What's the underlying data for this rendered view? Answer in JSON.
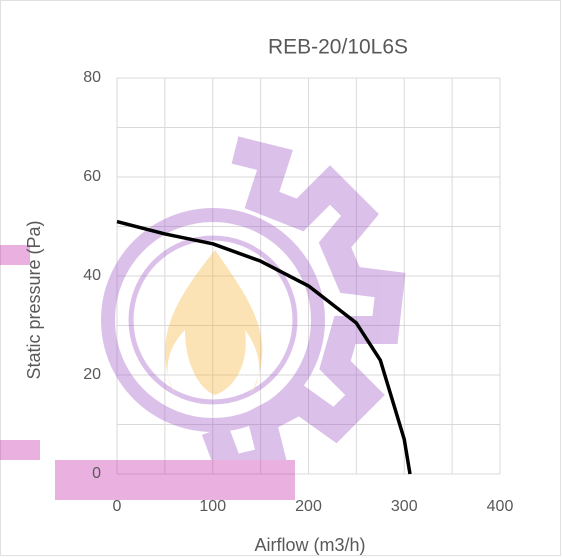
{
  "chart_data": {
    "type": "line",
    "title": "REB-20/10L6S",
    "x_label": "Airflow (m3/h)",
    "y_label": "Static pressure (Pa)",
    "x": [
      0,
      50,
      100,
      150,
      200,
      250,
      275,
      300,
      306
    ],
    "series": [
      {
        "name": "REB-20/10L6S",
        "color": "#000000",
        "values": [
          51,
          48.5,
          46.5,
          43,
          38,
          30.5,
          23,
          7,
          0
        ]
      }
    ],
    "xlim": [
      0,
      400
    ],
    "ylim": [
      0,
      80
    ],
    "xticks": [
      0,
      100,
      200,
      300,
      400
    ],
    "yticks": [
      0,
      20,
      40,
      60,
      80
    ],
    "x_minor_gridlines": [
      50,
      150,
      250,
      350
    ],
    "y_minor_gridlines": [
      10,
      30,
      50,
      70
    ],
    "grid": true
  }
}
